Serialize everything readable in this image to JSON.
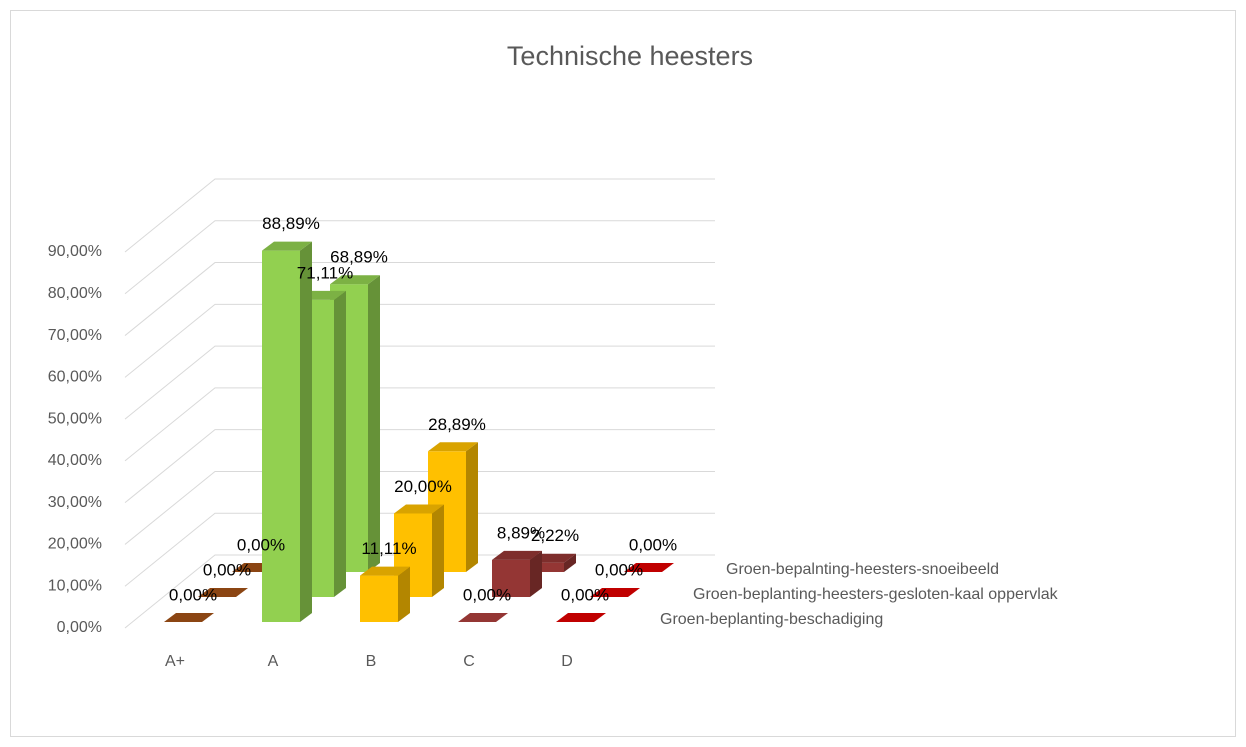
{
  "chart_data": {
    "type": "bar3d",
    "title": "Technische heesters",
    "categories": [
      "A+",
      "A",
      "B",
      "C",
      "D"
    ],
    "colors": [
      "#8b4513",
      "#92d050",
      "#ffc000",
      "#943634",
      "#c00000"
    ],
    "series": [
      {
        "name": "Groen-beplanting-beschadiging",
        "values": [
          0,
          88.89,
          11.11,
          0,
          0
        ],
        "value_labels": [
          "0,00%",
          "88,89%",
          "11,11%",
          "0,00%",
          "0,00%"
        ]
      },
      {
        "name": "Groen-beplanting-heesters-gesloten-kaal oppervlak",
        "values": [
          0,
          71.11,
          20.0,
          8.89,
          0
        ],
        "value_labels": [
          "0,00%",
          "71,11%",
          "20,00%",
          "8,89%",
          "0,00%"
        ]
      },
      {
        "name": "Groen-bepalnting-heesters-snoeibeeld",
        "values": [
          0,
          68.89,
          28.89,
          2.22,
          0
        ],
        "value_labels": [
          "0,00%",
          "68,89%",
          "28,89%",
          "2,22%",
          "0,00%"
        ]
      }
    ],
    "ylim": [
      0,
      90
    ],
    "yticks": [
      {
        "value": 0,
        "label": "0,00%"
      },
      {
        "value": 10,
        "label": "10,00%"
      },
      {
        "value": 20,
        "label": "20,00%"
      },
      {
        "value": 30,
        "label": "30,00%"
      },
      {
        "value": 40,
        "label": "40,00%"
      },
      {
        "value": 50,
        "label": "50,00%"
      },
      {
        "value": 60,
        "label": "60,00%"
      },
      {
        "value": 70,
        "label": "70,00%"
      },
      {
        "value": 80,
        "label": "80,00%"
      },
      {
        "value": 90,
        "label": "90,00%"
      }
    ],
    "grid": true
  }
}
